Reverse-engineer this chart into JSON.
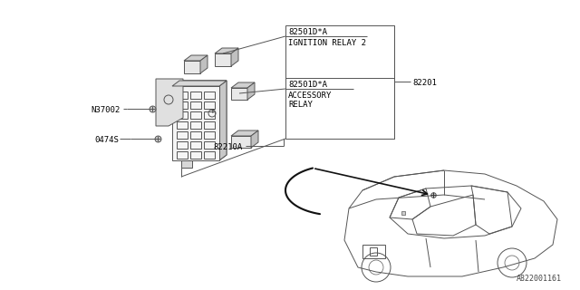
{
  "background_color": "#ffffff",
  "line_color": "#555555",
  "watermark": "A822001161",
  "label_82501DA_1": "82501D*A",
  "label_ignition": "IGNITION RELAY 2",
  "label_82501DA_2": "82501D*A",
  "label_accessory": "ACCESSORY",
  "label_relay": "RELAY",
  "label_82201": "82201",
  "label_82210A": "82210A",
  "label_N37002": "N37002",
  "label_0474S": "0474S"
}
